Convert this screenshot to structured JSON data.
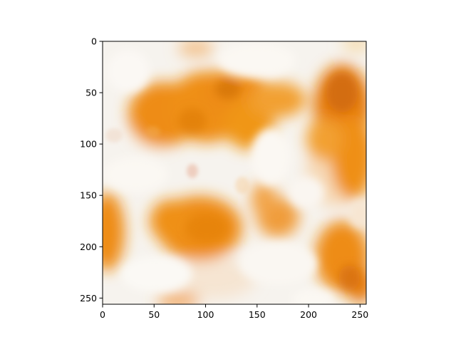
{
  "chart_data": {
    "type": "heatmap",
    "title": "",
    "xlabel": "",
    "ylabel": "",
    "xlim": [
      0,
      256
    ],
    "ylim": [
      256,
      0
    ],
    "x_ticks": [
      "0",
      "50",
      "100",
      "150",
      "200",
      "250"
    ],
    "y_ticks": [
      "0",
      "50",
      "100",
      "150",
      "200",
      "250"
    ],
    "x_tick_values": [
      0,
      50,
      100,
      150,
      200,
      250
    ],
    "y_tick_values": [
      0,
      50,
      100,
      150,
      200,
      250
    ],
    "colors": {
      "background": "#f6f3ee",
      "stain_dark": "#d9720a",
      "stain_main": "#ee8c12",
      "stain_light": "#f4a94a",
      "highlight": "#fbf8f3"
    },
    "content": "orange-white stained texture"
  }
}
